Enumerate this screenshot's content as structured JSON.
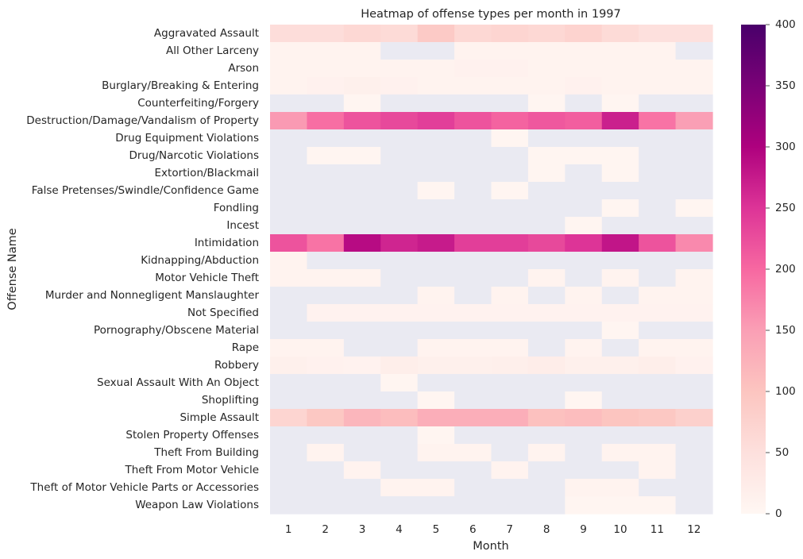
{
  "chart_data": {
    "type": "heatmap",
    "title": "Heatmap of offense types per month in 1997",
    "xlabel": "Month",
    "ylabel": "Offense Name",
    "x": [
      "1",
      "2",
      "3",
      "4",
      "5",
      "6",
      "7",
      "8",
      "9",
      "10",
      "11",
      "12"
    ],
    "y": [
      "Aggravated Assault",
      "All Other Larceny",
      "Arson",
      "Burglary/Breaking & Entering",
      "Counterfeiting/Forgery",
      "Destruction/Damage/Vandalism of Property",
      "Drug Equipment Violations",
      "Drug/Narcotic Violations",
      "Extortion/Blackmail",
      "False Pretenses/Swindle/Confidence Game",
      "Fondling",
      "Incest",
      "Intimidation",
      "Kidnapping/Abduction",
      "Motor Vehicle Theft",
      "Murder and Nonnegligent Manslaughter",
      "Not Specified",
      "Pornography/Obscene Material",
      "Rape",
      "Robbery",
      "Sexual Assault With An Object",
      "Shoplifting",
      "Simple Assault",
      "Stolen Property Offenses",
      "Theft From Building",
      "Theft From Motor Vehicle",
      "Theft of Motor Vehicle Parts or Accessories",
      "Weapon Law Violations"
    ],
    "values": [
      [
        55,
        55,
        65,
        60,
        90,
        65,
        70,
        65,
        75,
        60,
        50,
        50
      ],
      [
        8,
        8,
        8,
        null,
        null,
        8,
        8,
        8,
        8,
        8,
        8,
        null
      ],
      [
        8,
        8,
        8,
        8,
        8,
        12,
        12,
        8,
        8,
        8,
        8,
        8
      ],
      [
        8,
        12,
        15,
        12,
        8,
        8,
        8,
        8,
        12,
        8,
        8,
        8
      ],
      [
        null,
        null,
        4,
        null,
        null,
        null,
        null,
        4,
        null,
        4,
        null,
        null
      ],
      [
        155,
        195,
        220,
        230,
        240,
        220,
        205,
        215,
        210,
        270,
        190,
        150
      ],
      [
        null,
        null,
        null,
        null,
        null,
        null,
        4,
        null,
        null,
        null,
        null,
        null
      ],
      [
        null,
        4,
        4,
        null,
        null,
        null,
        null,
        4,
        4,
        4,
        null,
        null
      ],
      [
        null,
        null,
        null,
        null,
        null,
        null,
        null,
        4,
        null,
        4,
        null,
        null
      ],
      [
        null,
        null,
        null,
        null,
        4,
        null,
        4,
        null,
        null,
        null,
        null,
        null
      ],
      [
        null,
        null,
        null,
        null,
        null,
        null,
        null,
        null,
        null,
        4,
        null,
        4
      ],
      [
        null,
        null,
        null,
        null,
        null,
        null,
        null,
        null,
        4,
        null,
        null,
        null
      ],
      [
        220,
        190,
        290,
        265,
        275,
        240,
        240,
        230,
        250,
        280,
        220,
        170
      ],
      [
        8,
        null,
        null,
        null,
        null,
        null,
        null,
        null,
        null,
        null,
        null,
        null
      ],
      [
        8,
        8,
        8,
        null,
        null,
        null,
        null,
        8,
        null,
        8,
        null,
        8
      ],
      [
        null,
        null,
        null,
        null,
        8,
        null,
        8,
        null,
        8,
        null,
        8,
        8
      ],
      [
        null,
        10,
        10,
        10,
        10,
        10,
        10,
        10,
        10,
        10,
        10,
        10
      ],
      [
        null,
        null,
        null,
        null,
        null,
        null,
        null,
        null,
        null,
        4,
        null,
        null
      ],
      [
        8,
        8,
        null,
        null,
        8,
        8,
        8,
        null,
        8,
        null,
        8,
        8
      ],
      [
        15,
        12,
        10,
        20,
        15,
        15,
        18,
        22,
        15,
        15,
        20,
        12
      ],
      [
        null,
        null,
        null,
        4,
        null,
        null,
        null,
        null,
        null,
        null,
        null,
        null
      ],
      [
        null,
        null,
        null,
        null,
        4,
        null,
        null,
        null,
        4,
        null,
        null,
        null
      ],
      [
        70,
        95,
        120,
        110,
        130,
        130,
        130,
        105,
        110,
        100,
        95,
        80
      ],
      [
        null,
        null,
        null,
        null,
        4,
        null,
        null,
        null,
        null,
        null,
        null,
        null
      ],
      [
        null,
        8,
        null,
        null,
        8,
        8,
        null,
        8,
        null,
        8,
        8,
        null
      ],
      [
        null,
        null,
        8,
        null,
        null,
        null,
        8,
        null,
        null,
        null,
        8,
        null
      ],
      [
        null,
        null,
        null,
        8,
        8,
        null,
        null,
        null,
        8,
        8,
        null,
        null
      ],
      [
        null,
        null,
        null,
        null,
        null,
        null,
        null,
        null,
        4,
        4,
        4,
        null
      ]
    ],
    "vmin": 0,
    "vmax": 400,
    "colormap": "RdPu",
    "missing_color": "#eaeaf2",
    "colorbar_ticks": [
      0,
      50,
      100,
      150,
      200,
      250,
      300,
      350,
      400
    ]
  }
}
